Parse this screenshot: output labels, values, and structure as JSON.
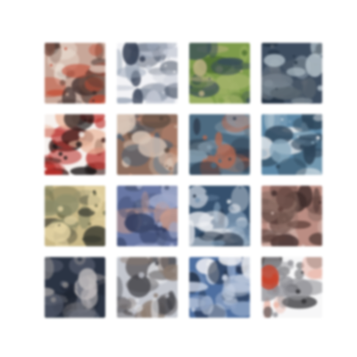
{
  "grid": {
    "rows": 4,
    "columns": 4,
    "tiles": [
      {
        "palette": [
          "#c7a79a",
          "#3c2c2a",
          "#c04a33",
          "#f0e8df",
          "#7b5449"
        ]
      },
      {
        "palette": [
          "#f3f3f6",
          "#5b6676",
          "#2f3a4e",
          "#9aa5b5",
          "#c9ced8"
        ]
      },
      {
        "palette": [
          "#7f9b4e",
          "#4f6e34",
          "#c3b58d",
          "#3a4d57",
          "#a3b36d"
        ]
      },
      {
        "palette": [
          "#3e4d5f",
          "#5c6770",
          "#b9c6cd",
          "#22303f",
          "#7a8690"
        ]
      },
      {
        "palette": [
          "#f6f1ee",
          "#3a1a18",
          "#b3302b",
          "#e8b8a0",
          "#1c1717"
        ]
      },
      {
        "palette": [
          "#8e6e5f",
          "#c78b74",
          "#57473f",
          "#d6c5b8",
          "#4a5d6e"
        ]
      },
      {
        "palette": [
          "#4e6b80",
          "#b46a52",
          "#2f3b4a",
          "#8ca2b2",
          "#6c7b86"
        ]
      },
      {
        "palette": [
          "#5f89a6",
          "#2d4356",
          "#c8d5dc",
          "#8aa9bc",
          "#f1f1f2"
        ]
      },
      {
        "palette": [
          "#c9b98a",
          "#6b6a4c",
          "#3b3c33",
          "#e3d4a6",
          "#8f8e6e"
        ]
      },
      {
        "palette": [
          "#6a78a3",
          "#2f3a5c",
          "#c79b8e",
          "#a0a9c8",
          "#4e5a78"
        ]
      },
      {
        "palette": [
          "#36506c",
          "#cfd6df",
          "#1e2c3e",
          "#7b95af",
          "#eef0f3"
        ]
      },
      {
        "palette": [
          "#b98d84",
          "#5c3f3b",
          "#d9c3bd",
          "#8c6f67",
          "#3d2c2a"
        ]
      },
      {
        "palette": [
          "#2b3443",
          "#8e8c8e",
          "#5b6171",
          "#c2bebf",
          "#1f2530"
        ]
      },
      {
        "palette": [
          "#c4c7cf",
          "#8a7a6f",
          "#5e5a5c",
          "#e1e2e6",
          "#3f3f45"
        ]
      },
      {
        "palette": [
          "#4f6f9e",
          "#f2f2f4",
          "#1f2a3f",
          "#8ea3c4",
          "#c8d2e2"
        ]
      },
      {
        "palette": [
          "#f7f7f8",
          "#2c2c30",
          "#c4422b",
          "#e7b1a3",
          "#8f8f95"
        ]
      }
    ]
  }
}
